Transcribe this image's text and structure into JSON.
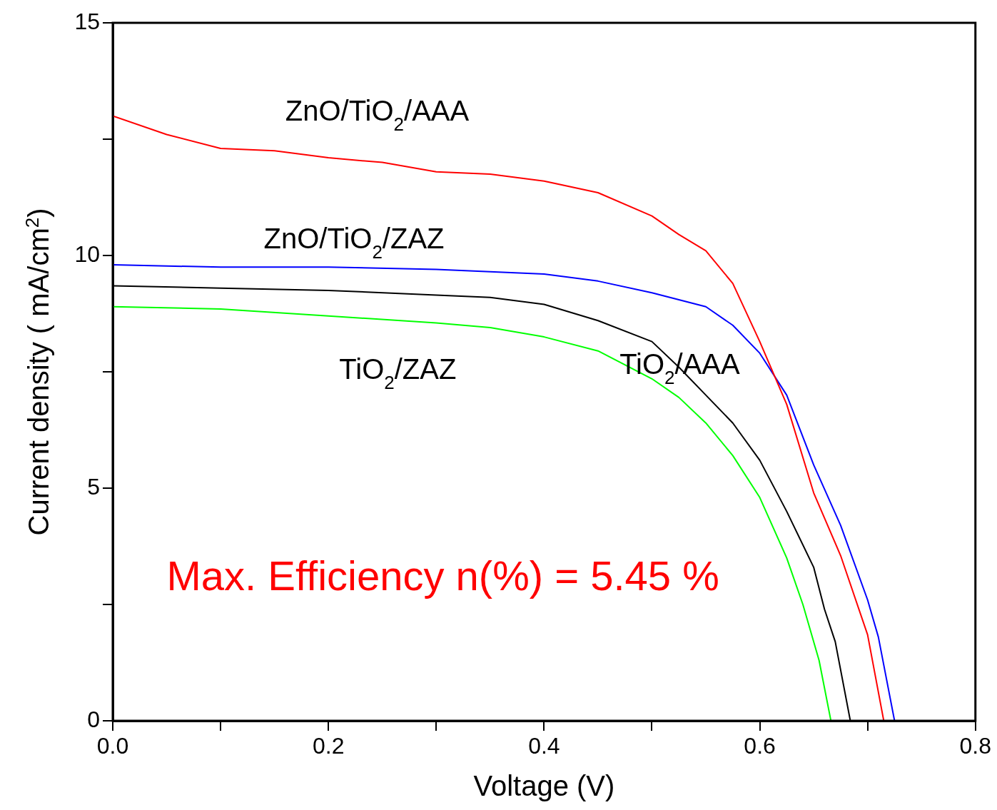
{
  "chart_data": {
    "type": "line",
    "xlabel": "Voltage (V)",
    "ylabel": "Current density ( mA/cm$^{2}$)",
    "xlim": [
      0,
      0.8
    ],
    "xticks": [
      {
        "value": 0,
        "label": "0.0"
      },
      {
        "value": 0.1,
        "label": null
      },
      {
        "value": 0.2,
        "label": "0.2"
      },
      {
        "value": 0.3,
        "label": null
      },
      {
        "value": 0.4,
        "label": "0.4"
      },
      {
        "value": 0.5,
        "label": null
      },
      {
        "value": 0.6,
        "label": "0.6"
      },
      {
        "value": 0.7,
        "label": null
      },
      {
        "value": 0.8,
        "label": "0.8"
      }
    ],
    "ylim": [
      0,
      15
    ],
    "yticks": [
      0,
      {
        "value": 2.5,
        "label": null
      },
      5,
      {
        "value": 7.5,
        "label": null
      },
      10,
      {
        "value": 12.5,
        "label": null
      },
      15
    ],
    "grid": false,
    "legend": false,
    "marker": "none",
    "line_style": "solid",
    "annotations": [
      "Max. Efficiency n(%) = 5.45 %"
    ],
    "series": [
      {
        "name": "ZnO/TiO$_{2}$/AAA",
        "color": "#ff0000",
        "x": [
          0,
          0.05,
          0.1,
          0.15,
          0.2,
          0.25,
          0.3,
          0.35,
          0.4,
          0.45,
          0.5,
          0.525,
          0.55,
          0.575,
          0.6,
          0.625,
          0.65,
          0.675,
          0.7,
          0.715
        ],
        "values": [
          13.0,
          12.6,
          12.3,
          12.25,
          12.1,
          12.0,
          11.8,
          11.75,
          11.6,
          11.35,
          10.85,
          10.45,
          10.1,
          9.4,
          8.15,
          6.8,
          4.9,
          3.55,
          1.85,
          0
        ]
      },
      {
        "name": "ZnO/TiO$_{2}$/ZAZ",
        "color": "#0000ff",
        "x": [
          0,
          0.1,
          0.2,
          0.3,
          0.4,
          0.45,
          0.5,
          0.55,
          0.575,
          0.6,
          0.625,
          0.65,
          0.675,
          0.7,
          0.71,
          0.725
        ],
        "values": [
          9.8,
          9.75,
          9.75,
          9.7,
          9.6,
          9.45,
          9.2,
          8.9,
          8.5,
          7.9,
          7.0,
          5.5,
          4.2,
          2.6,
          1.8,
          0
        ]
      },
      {
        "name": "TiO$_{2}$/AAA",
        "color": "#000000",
        "x": [
          0,
          0.1,
          0.2,
          0.3,
          0.35,
          0.4,
          0.45,
          0.5,
          0.525,
          0.55,
          0.575,
          0.6,
          0.625,
          0.65,
          0.66,
          0.67,
          0.684
        ],
        "values": [
          9.35,
          9.3,
          9.25,
          9.15,
          9.1,
          8.95,
          8.6,
          8.15,
          7.6,
          7.0,
          6.4,
          5.6,
          4.5,
          3.3,
          2.4,
          1.7,
          0
        ]
      },
      {
        "name": "TiO$_{2}$/ZAZ",
        "color": "#00ff00",
        "x": [
          0,
          0.1,
          0.2,
          0.3,
          0.35,
          0.4,
          0.45,
          0.5,
          0.525,
          0.55,
          0.575,
          0.6,
          0.625,
          0.64,
          0.655,
          0.666
        ],
        "values": [
          8.9,
          8.85,
          8.7,
          8.55,
          8.45,
          8.25,
          7.95,
          7.35,
          6.95,
          6.4,
          5.7,
          4.8,
          3.5,
          2.5,
          1.3,
          0
        ]
      }
    ]
  }
}
